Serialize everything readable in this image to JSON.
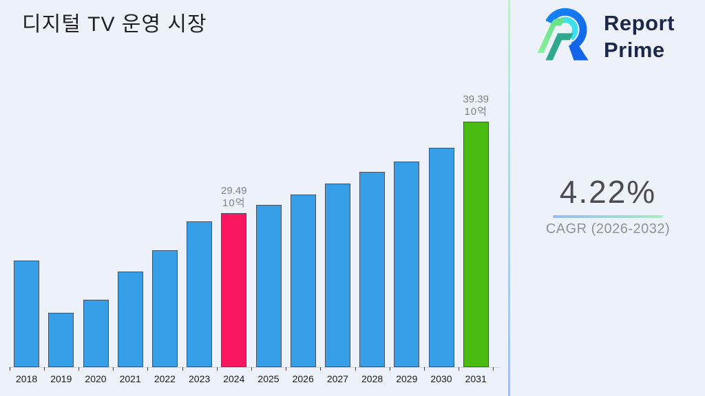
{
  "header": {
    "title": "디지털 TV 운영 시장"
  },
  "logo": {
    "icon": "report-prime-r-mark",
    "line1": "Report",
    "line2": "Prime"
  },
  "stat": {
    "value": "4.22%",
    "label": "CAGR (2026-2032)"
  },
  "colors": {
    "background": "#ECF1FA",
    "bar_default": "#379FE8",
    "bar_highlight_2024": "#FB1760",
    "bar_highlight_2031": "#4ABB11",
    "bar_border": "#454E5E",
    "logo_text": "#1C2749",
    "stat_underline_left": "#98BBF2",
    "stat_underline_right": "#A9ECC1"
  },
  "chart_data": {
    "type": "bar",
    "title": "디지털 TV 운영 시장",
    "unit": "10억",
    "categories": [
      "2018",
      "2019",
      "2020",
      "2021",
      "2022",
      "2023",
      "2024",
      "2025",
      "2026",
      "2027",
      "2028",
      "2029",
      "2030",
      "2031"
    ],
    "values": [
      24.4,
      18.7,
      20.1,
      23.2,
      25.5,
      28.6,
      29.49,
      30.4,
      31.5,
      32.7,
      34.0,
      35.1,
      36.6,
      39.39
    ],
    "bar_colors": [
      "#379FE8",
      "#379FE8",
      "#379FE8",
      "#379FE8",
      "#379FE8",
      "#379FE8",
      "#FB1760",
      "#379FE8",
      "#379FE8",
      "#379FE8",
      "#379FE8",
      "#379FE8",
      "#379FE8",
      "#4ABB11"
    ],
    "value_labels": [
      {
        "index": 6,
        "text": "29.49",
        "unit": "10억"
      },
      {
        "index": 13,
        "text": "39.39",
        "unit": "10억"
      }
    ],
    "ylim": [
      12.85,
      39.39
    ],
    "xlabel": "",
    "ylabel": "",
    "grid": false,
    "legend": false,
    "y_axis_visible": false
  }
}
